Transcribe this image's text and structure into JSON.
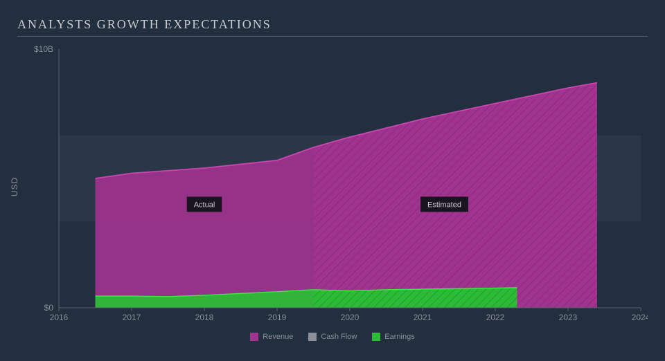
{
  "title": "ANALYSTS GROWTH EXPECTATIONS",
  "chart": {
    "type": "area",
    "background_color": "#222f3e",
    "grid_band_color": "#2a3747",
    "axis_color": "#5a6270",
    "tick_color": "#8a8f98",
    "title_color": "#c8cbd0",
    "title_fontsize": 18,
    "ylabel": "USD",
    "ylim": [
      0,
      10
    ],
    "y_ticks": [
      {
        "v": 0,
        "label": "$0"
      },
      {
        "v": 10,
        "label": "$10B"
      }
    ],
    "y_band_count": 3,
    "xlim": [
      2016,
      2024
    ],
    "x_ticks": [
      2016,
      2017,
      2018,
      2019,
      2020,
      2021,
      2022,
      2023,
      2024
    ],
    "split_year": 2019.5,
    "actual_label": "Actual",
    "estimated_label": "Estimated",
    "annotation_bg": "#1a1420",
    "annotation_text_color": "#c8cbd0",
    "series": {
      "revenue": {
        "name": "Revenue",
        "color": "#a0338f",
        "stroke": "#c946b0",
        "points": [
          {
            "x": 2016.5,
            "y": 5.0
          },
          {
            "x": 2017.0,
            "y": 5.2
          },
          {
            "x": 2017.5,
            "y": 5.3
          },
          {
            "x": 2018.0,
            "y": 5.4
          },
          {
            "x": 2018.5,
            "y": 5.55
          },
          {
            "x": 2019.0,
            "y": 5.7
          },
          {
            "x": 2019.5,
            "y": 6.2
          },
          {
            "x": 2020.0,
            "y": 6.6
          },
          {
            "x": 2020.5,
            "y": 6.95
          },
          {
            "x": 2021.0,
            "y": 7.3
          },
          {
            "x": 2021.5,
            "y": 7.6
          },
          {
            "x": 2022.0,
            "y": 7.9
          },
          {
            "x": 2022.5,
            "y": 8.2
          },
          {
            "x": 2023.0,
            "y": 8.5
          },
          {
            "x": 2023.4,
            "y": 8.7
          }
        ]
      },
      "earnings": {
        "name": "Earnings",
        "color": "#2cbb36",
        "stroke": "#3de547",
        "points": [
          {
            "x": 2016.5,
            "y": 0.45
          },
          {
            "x": 2017.0,
            "y": 0.45
          },
          {
            "x": 2017.5,
            "y": 0.43
          },
          {
            "x": 2018.0,
            "y": 0.48
          },
          {
            "x": 2018.5,
            "y": 0.55
          },
          {
            "x": 2019.0,
            "y": 0.62
          },
          {
            "x": 2019.5,
            "y": 0.7
          },
          {
            "x": 2020.0,
            "y": 0.65
          },
          {
            "x": 2020.5,
            "y": 0.7
          },
          {
            "x": 2021.0,
            "y": 0.72
          },
          {
            "x": 2021.5,
            "y": 0.74
          },
          {
            "x": 2022.0,
            "y": 0.76
          },
          {
            "x": 2022.3,
            "y": 0.78
          }
        ]
      },
      "cashflow": {
        "name": "Cash Flow",
        "color": "#8a8f98"
      }
    },
    "legend": [
      "revenue",
      "cashflow",
      "earnings"
    ],
    "hatch_spacing": 8,
    "hatch_color_dark": "#7a2a6d",
    "hatch_color_light": "#238a2a"
  }
}
